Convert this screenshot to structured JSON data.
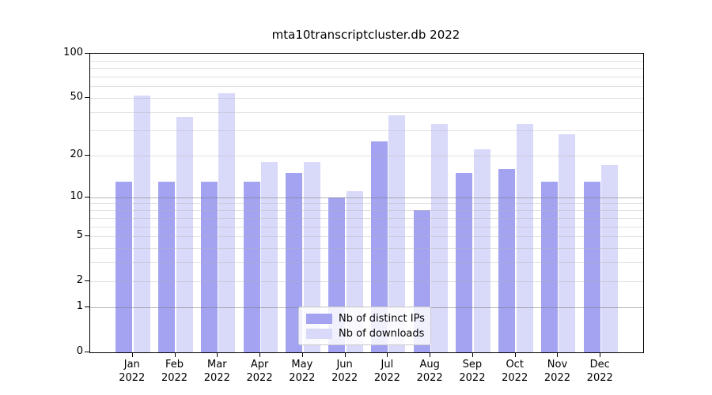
{
  "title": "mta10transcriptcluster.db 2022",
  "chart_data": {
    "type": "bar",
    "title": "mta10transcriptcluster.db 2022",
    "categories": [
      "Jan",
      "Feb",
      "Mar",
      "Apr",
      "May",
      "Jun",
      "Jul",
      "Aug",
      "Sep",
      "Oct",
      "Nov",
      "Dec"
    ],
    "year_label": "2022",
    "series": [
      {
        "name": "Nb of distinct IPs",
        "color": "#a3a3f2",
        "values": [
          13,
          13,
          13,
          13,
          15,
          10,
          25,
          8,
          15,
          16,
          13,
          13
        ]
      },
      {
        "name": "Nb of downloads",
        "color": "#d9d9f9",
        "values": [
          52,
          37,
          54,
          18,
          18,
          11,
          38,
          33,
          22,
          33,
          28,
          17
        ]
      }
    ],
    "xlabel": "",
    "ylabel": "",
    "y_scale": "log1p",
    "y_ticks": [
      0,
      1,
      2,
      5,
      10,
      20,
      50,
      100
    ],
    "y_major_grid": [
      1,
      10
    ],
    "y_minor_grid": [
      2,
      3,
      4,
      5,
      6,
      7,
      8,
      9,
      20,
      30,
      40,
      50,
      60,
      70,
      80,
      90
    ],
    "ylim": [
      0,
      100
    ],
    "grid": "both",
    "legend_position": "lower center"
  }
}
